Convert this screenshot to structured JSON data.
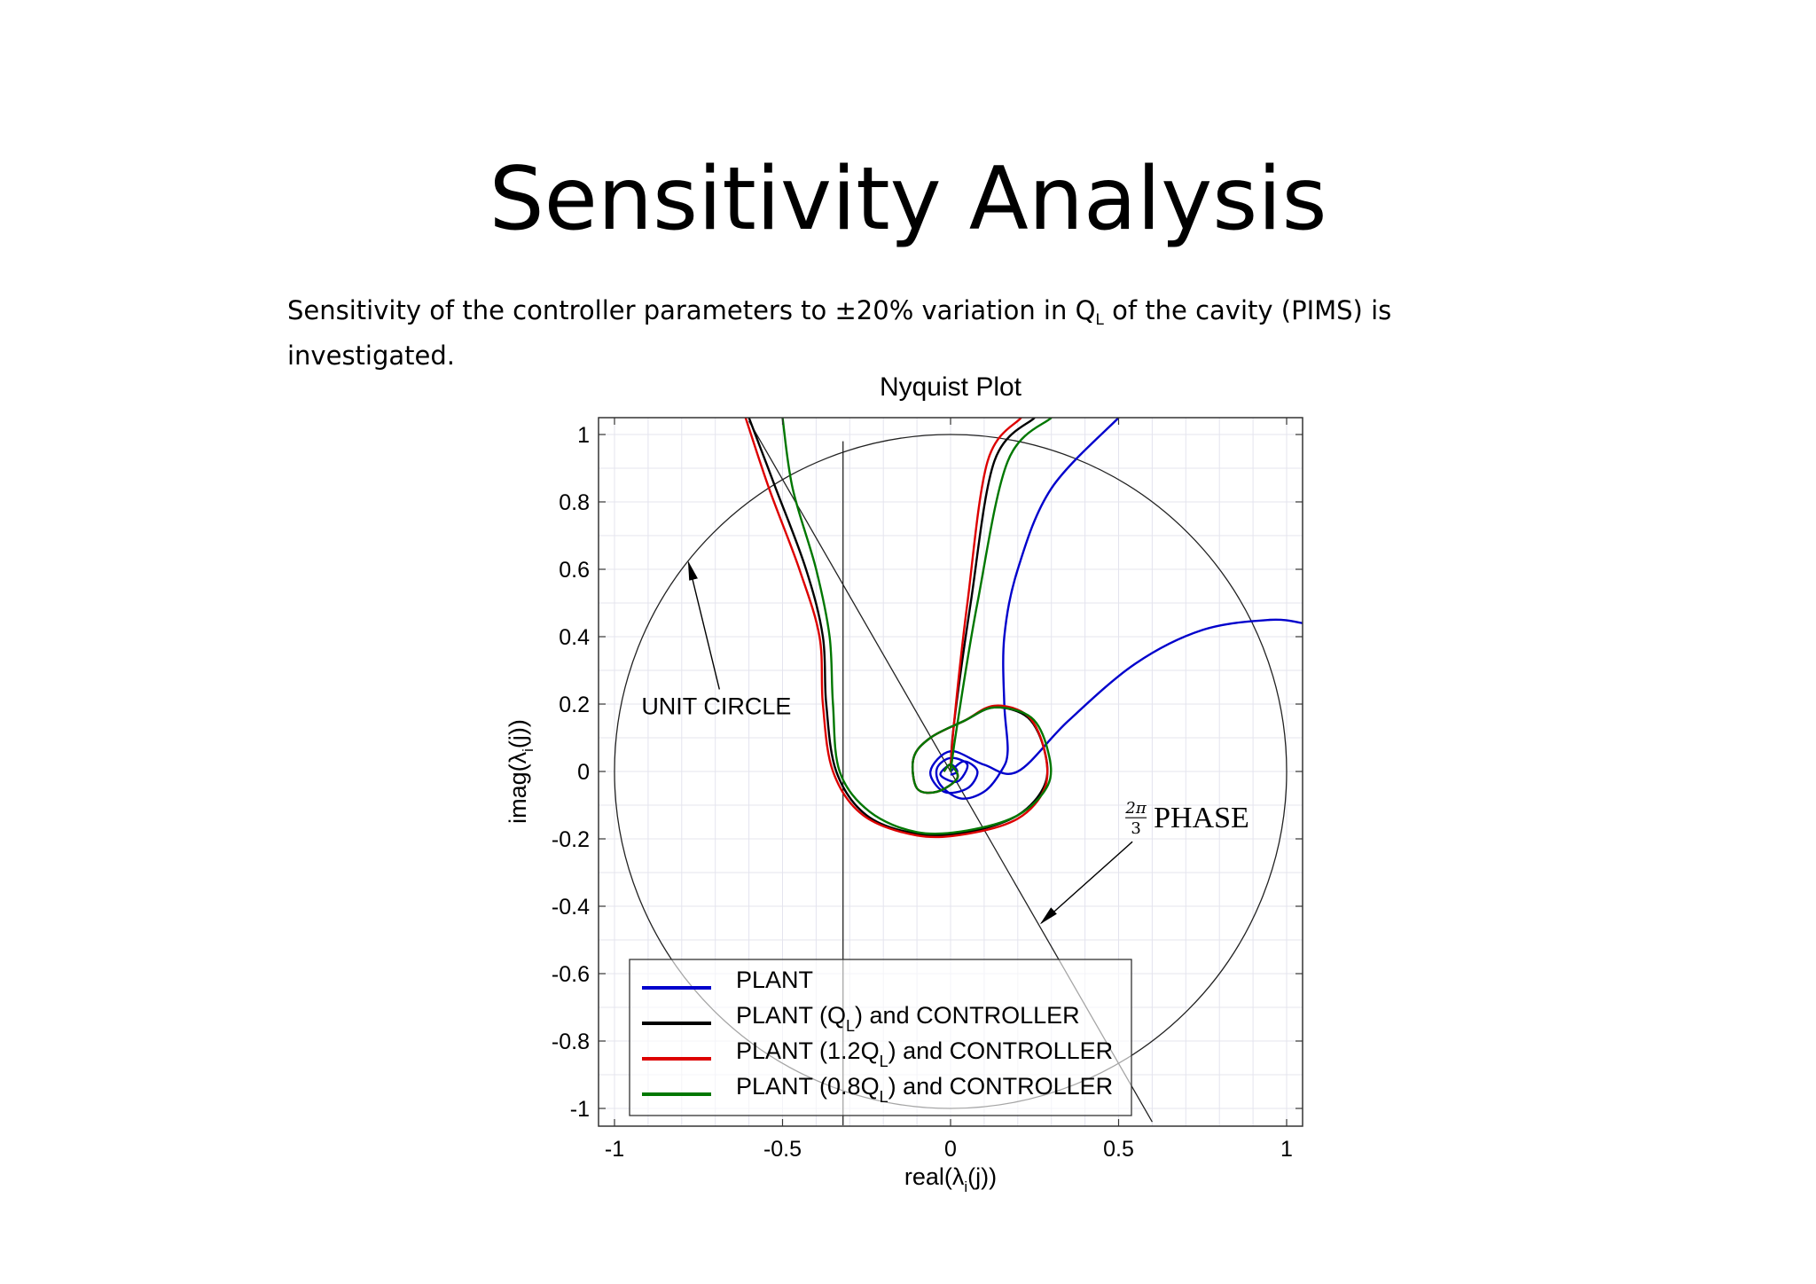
{
  "slide": {
    "title": "Sensitivity Analysis",
    "intro": {
      "before": "Sensitivity of the controller parameters to ±20% variation in Q",
      "subscript": "L",
      "after": " of the cavity (PIMS) is investigated."
    }
  },
  "chart_data": {
    "type": "line",
    "title": "Nyquist Plot",
    "xlabel": "real(λi(j))",
    "ylabel": "imag(λi(j))",
    "xlim": [
      -1.05,
      1.05
    ],
    "ylim": [
      -1.05,
      1.05
    ],
    "x_ticks": [
      "-1",
      "-0.5",
      "0",
      "0.5",
      "1"
    ],
    "y_ticks": [
      "1",
      "0.8",
      "0.6",
      "0.4",
      "0.2",
      "0",
      "-0.2",
      "-0.4",
      "-0.6",
      "-0.8",
      "-1"
    ],
    "grid": true,
    "legend_position": "bottom-left",
    "series": [
      {
        "name": "PLANT",
        "color": "#0000cc",
        "points": [
          [
            0.5,
            1.05
          ],
          [
            0.3,
            0.84
          ],
          [
            0.2,
            0.6
          ],
          [
            0.16,
            0.4
          ],
          [
            0.16,
            0.2
          ],
          [
            0.17,
            0.06
          ],
          [
            0.15,
            0.0
          ],
          [
            0.1,
            -0.06
          ],
          [
            0.03,
            -0.08
          ],
          [
            -0.03,
            -0.04
          ],
          [
            -0.04,
            0.01
          ],
          [
            0.0,
            0.04
          ],
          [
            0.05,
            0.02
          ],
          [
            0.02,
            -0.03
          ],
          [
            -0.03,
            -0.01
          ],
          [
            0.0,
            0.02
          ],
          [
            0.02,
            0.0
          ],
          [
            0.0,
            -0.01
          ]
        ]
      },
      {
        "name": "PLANT",
        "color": "#0000cc",
        "points": [
          [
            0.0,
            0.0
          ],
          [
            0.04,
            0.03
          ],
          [
            0.08,
            0.0
          ],
          [
            0.05,
            -0.05
          ],
          [
            -0.02,
            -0.06
          ],
          [
            -0.06,
            0.0
          ],
          [
            0.0,
            0.06
          ],
          [
            0.1,
            0.02
          ],
          [
            0.2,
            0.0
          ],
          [
            0.35,
            0.15
          ],
          [
            0.55,
            0.32
          ],
          [
            0.75,
            0.42
          ],
          [
            0.95,
            0.45
          ],
          [
            1.05,
            0.44
          ]
        ]
      },
      {
        "name": "PLANT (QL) and CONTROLLER",
        "color": "#000000",
        "points": [
          [
            -0.6,
            1.05
          ],
          [
            -0.52,
            0.84
          ],
          [
            -0.43,
            0.6
          ],
          [
            -0.38,
            0.4
          ],
          [
            -0.37,
            0.2
          ],
          [
            -0.34,
            0.0
          ],
          [
            -0.25,
            -0.13
          ],
          [
            -0.1,
            -0.185
          ],
          [
            0.05,
            -0.18
          ],
          [
            0.2,
            -0.13
          ],
          [
            0.28,
            -0.04
          ],
          [
            0.28,
            0.06
          ],
          [
            0.23,
            0.16
          ],
          [
            0.13,
            0.19
          ],
          [
            0.04,
            0.15
          ],
          [
            -0.06,
            0.1
          ],
          [
            -0.11,
            0.04
          ],
          [
            -0.1,
            -0.05
          ],
          [
            -0.04,
            -0.06
          ],
          [
            0.02,
            -0.02
          ],
          [
            0.0,
            0.02
          ],
          [
            -0.02,
            0.0
          ]
        ]
      },
      {
        "name": "PLANT (QL) and CONTROLLER",
        "color": "#000000",
        "points": [
          [
            0.0,
            0.0
          ],
          [
            0.01,
            0.14
          ],
          [
            0.06,
            0.5
          ],
          [
            0.13,
            0.92
          ],
          [
            0.25,
            1.05
          ]
        ]
      },
      {
        "name": "PLANT (1.2QL) and CONTROLLER",
        "color": "#dd0000",
        "points": [
          [
            -0.61,
            1.05
          ],
          [
            -0.54,
            0.84
          ],
          [
            -0.45,
            0.6
          ],
          [
            -0.39,
            0.4
          ],
          [
            -0.38,
            0.2
          ],
          [
            -0.35,
            0.0
          ],
          [
            -0.26,
            -0.13
          ],
          [
            -0.1,
            -0.19
          ],
          [
            0.05,
            -0.185
          ],
          [
            0.2,
            -0.14
          ],
          [
            0.28,
            -0.05
          ],
          [
            0.28,
            0.06
          ],
          [
            0.23,
            0.165
          ],
          [
            0.13,
            0.195
          ],
          [
            0.04,
            0.15
          ],
          [
            -0.06,
            0.1
          ],
          [
            -0.11,
            0.04
          ],
          [
            -0.1,
            -0.05
          ],
          [
            -0.04,
            -0.06
          ],
          [
            0.02,
            -0.02
          ],
          [
            0.0,
            0.02
          ],
          [
            -0.02,
            0.0
          ]
        ]
      },
      {
        "name": "PLANT (1.2QL) and CONTROLLER",
        "color": "#dd0000",
        "points": [
          [
            0.0,
            0.0
          ],
          [
            0.01,
            0.14
          ],
          [
            0.05,
            0.5
          ],
          [
            0.11,
            0.92
          ],
          [
            0.21,
            1.05
          ]
        ]
      },
      {
        "name": "PLANT (0.8QL) and CONTROLLER",
        "color": "#007700",
        "points": [
          [
            -0.5,
            1.05
          ],
          [
            -0.47,
            0.84
          ],
          [
            -0.4,
            0.6
          ],
          [
            -0.36,
            0.4
          ],
          [
            -0.35,
            0.2
          ],
          [
            -0.33,
            0.0
          ],
          [
            -0.24,
            -0.12
          ],
          [
            -0.1,
            -0.18
          ],
          [
            0.05,
            -0.175
          ],
          [
            0.2,
            -0.13
          ],
          [
            0.29,
            -0.04
          ],
          [
            0.29,
            0.06
          ],
          [
            0.24,
            0.16
          ],
          [
            0.13,
            0.19
          ],
          [
            0.04,
            0.15
          ],
          [
            -0.06,
            0.1
          ],
          [
            -0.11,
            0.04
          ],
          [
            -0.1,
            -0.05
          ],
          [
            -0.04,
            -0.06
          ],
          [
            0.02,
            -0.02
          ],
          [
            0.0,
            0.02
          ],
          [
            -0.02,
            0.0
          ]
        ]
      },
      {
        "name": "PLANT (0.8QL) and CONTROLLER",
        "color": "#007700",
        "points": [
          [
            0.0,
            0.0
          ],
          [
            0.02,
            0.14
          ],
          [
            0.08,
            0.5
          ],
          [
            0.17,
            0.92
          ],
          [
            0.3,
            1.05
          ]
        ]
      }
    ],
    "reference_lines": [
      {
        "label": "vertical line",
        "points": [
          [
            -0.32,
            -1.05
          ],
          [
            -0.32,
            0.98
          ]
        ]
      },
      {
        "label": "2π/3 phase line",
        "points": [
          [
            -0.6,
            1.04
          ],
          [
            0.6,
            -1.04
          ]
        ]
      },
      {
        "label": "unit circle",
        "circle": {
          "cx": 0,
          "cy": 0,
          "r": 1
        }
      }
    ],
    "legend": [
      {
        "label_before": "PLANT",
        "sub": "",
        "label_after": "",
        "color": "#0000cc"
      },
      {
        "label_before": "PLANT (Q",
        "sub": "L",
        "label_after": ") and CONTROLLER",
        "color": "#000000"
      },
      {
        "label_before": "PLANT (1.2Q",
        "sub": "L",
        "label_after": ") and CONTROLLER",
        "color": "#dd0000"
      },
      {
        "label_before": "PLANT (0.8Q",
        "sub": "L",
        "label_after": ") and CONTROLLER",
        "color": "#007700"
      }
    ],
    "annotations": [
      {
        "text": "UNIT CIRCLE",
        "anchor": [
          -0.92,
          0.17
        ],
        "arrow_to": [
          -0.78,
          0.62
        ]
      },
      {
        "text_num": "2π",
        "text_den": "3",
        "text_rest": "PHASE",
        "anchor": [
          0.52,
          -0.14
        ],
        "arrow_to": [
          0.27,
          -0.45
        ]
      }
    ]
  }
}
